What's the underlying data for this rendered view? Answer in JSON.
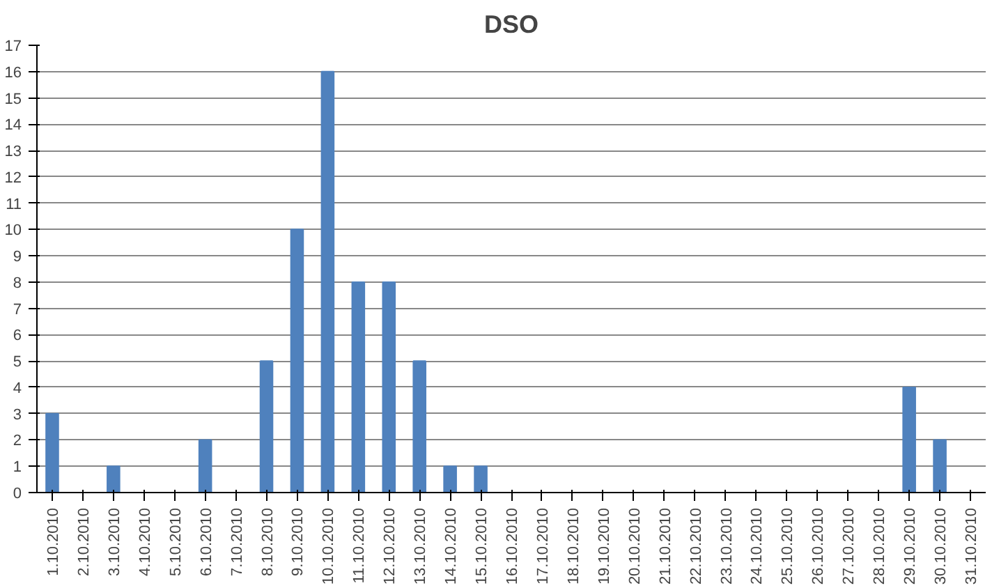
{
  "chart_data": {
    "type": "bar",
    "title": "DSO",
    "categories": [
      "1.10.2010",
      "2.10.2010",
      "3.10.2010",
      "4.10.2010",
      "5.10.2010",
      "6.10.2010",
      "7.10.2010",
      "8.10.2010",
      "9.10.2010",
      "10.10.2010",
      "11.10.2010",
      "12.10.2010",
      "13.10.2010",
      "14.10.2010",
      "15.10.2010",
      "16.10.2010",
      "17.10.2010",
      "18.10.2010",
      "19.10.2010",
      "20.10.2010",
      "21.10.2010",
      "22.10.2010",
      "23.10.2010",
      "24.10.2010",
      "25.10.2010",
      "26.10.2010",
      "27.10.2010",
      "28.10.2010",
      "29.10.2010",
      "30.10.2010",
      "31.10.2010"
    ],
    "values": [
      3,
      0,
      1,
      0,
      0,
      2,
      0,
      5,
      10,
      16,
      8,
      8,
      5,
      1,
      1,
      0,
      0,
      0,
      0,
      0,
      0,
      0,
      0,
      0,
      0,
      0,
      0,
      0,
      4,
      2,
      0
    ],
    "color": "#4f81bd",
    "ylim": [
      0,
      17
    ],
    "yticks": [
      0,
      1,
      2,
      3,
      4,
      5,
      6,
      7,
      8,
      9,
      10,
      11,
      12,
      13,
      14,
      15,
      16,
      17
    ],
    "grid": "y"
  }
}
